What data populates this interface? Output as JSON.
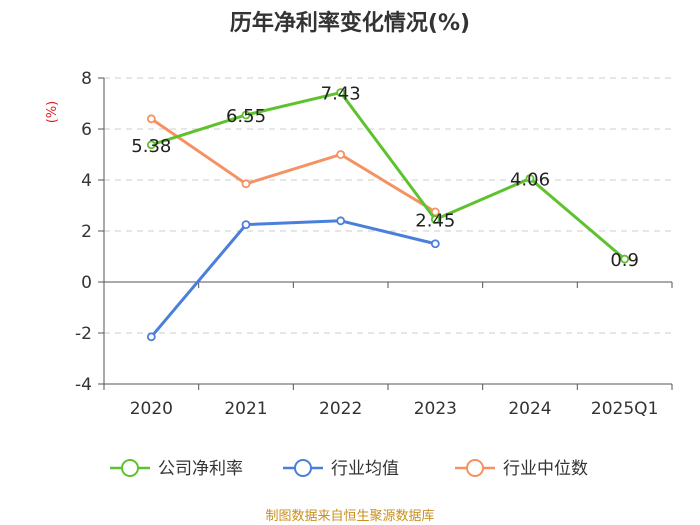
{
  "chart_data": {
    "type": "line",
    "title": "历年净利率变化情况(%)",
    "ylabel": "(%)",
    "categories": [
      "2020",
      "2021",
      "2022",
      "2023",
      "2024",
      "2025Q1"
    ],
    "ylim": [
      -4,
      8
    ],
    "yticks": [
      8,
      6,
      4,
      2,
      0,
      -2,
      -4
    ],
    "ytick_labels": [
      "8",
      "6",
      "4",
      "2",
      "0",
      "-2",
      "-4"
    ],
    "grid": true,
    "legend_position": "bottom",
    "series": [
      {
        "name": "公司净利率",
        "color": "#5ec22e",
        "values": [
          5.38,
          6.55,
          7.43,
          2.45,
          4.06,
          0.9
        ],
        "labels": [
          "5.38",
          "6.55",
          "7.43",
          "2.45",
          "4.06",
          "0.9"
        ]
      },
      {
        "name": "行业均值",
        "color": "#4a7fdc",
        "values": [
          -2.15,
          2.25,
          2.4,
          1.5,
          null,
          null
        ]
      },
      {
        "name": "行业中位数",
        "color": "#f59263",
        "values": [
          6.4,
          3.85,
          5.0,
          2.75,
          null,
          null
        ]
      }
    ],
    "source": "制图数据来自恒生聚源数据库"
  }
}
